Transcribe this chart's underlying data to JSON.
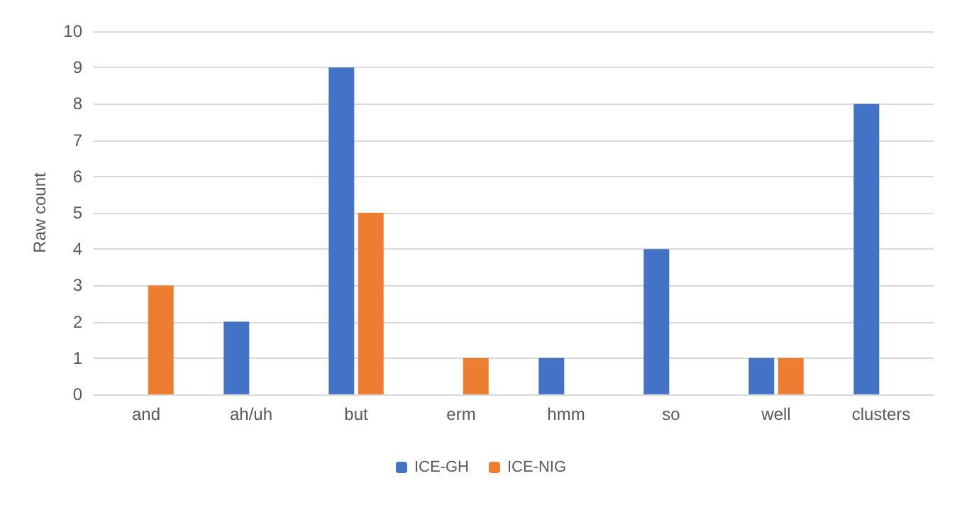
{
  "chart_data": {
    "type": "bar",
    "ylabel": "Raw count",
    "categories": [
      "and",
      "ah/uh",
      "but",
      "erm",
      "hmm",
      "so",
      "well",
      "clusters"
    ],
    "series": [
      {
        "name": "ICE-GH",
        "color": "#4472c4",
        "values": [
          0,
          2,
          9,
          0,
          1,
          4,
          1,
          8
        ]
      },
      {
        "name": "ICE-NIG",
        "color": "#ed7d31",
        "values": [
          3,
          0,
          5,
          1,
          0,
          0,
          1,
          0
        ]
      }
    ],
    "ylim": [
      0,
      10
    ],
    "yticks": [
      0,
      1,
      2,
      3,
      4,
      5,
      6,
      7,
      8,
      9,
      10
    ],
    "grid": "y",
    "legend": "bottom"
  }
}
